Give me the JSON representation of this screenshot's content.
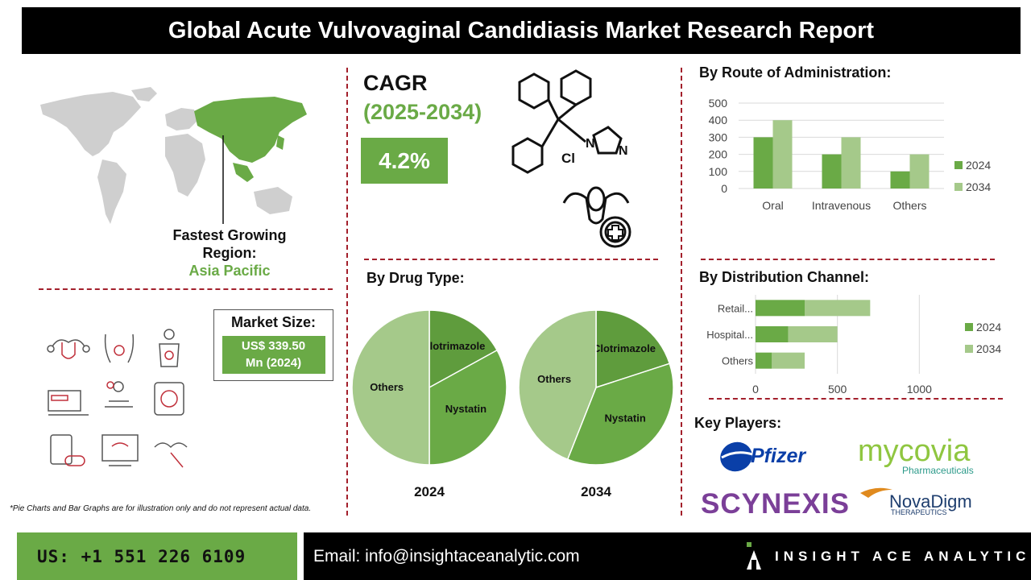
{
  "title": "Global Acute Vulvovaginal Candidiasis Market Research Report",
  "region": {
    "label": "Fastest Growing Region:",
    "value": "Asia Pacific"
  },
  "market_size": {
    "label": "Market Size:",
    "value_line1": "US$ 339.50",
    "value_line2": "Mn (2024)"
  },
  "cagr": {
    "label": "CAGR",
    "period": "(2025-2034)",
    "value": "4.2%"
  },
  "molecule": {
    "cl_label": "Cl",
    "n1_label": "N",
    "n2_label": "N"
  },
  "note": "*Pie Charts and Bar Graphs are for illustration only and do not represent actual data.",
  "sections": {
    "route": "By Route of Administration:",
    "drug": "By Drug Type:",
    "distribution": "By Distribution Channel:",
    "players": "Key Players:"
  },
  "key_players": {
    "pfizer": "Pfizer",
    "mycovia": "mycovia",
    "mycovia_sub": "Pharmaceuticals",
    "scynexis": "SCYNEXIS",
    "novadigm": "NovaDigm",
    "novadigm_sub": "THERAPEUTICS"
  },
  "footer": {
    "phone": "US: +1 551 226 6109",
    "email": "Email: info@insightaceanalytic.com",
    "brand": "INSIGHT ACE ANALYTIC"
  },
  "colors": {
    "dark_green": "#5f9c3d",
    "mid_green": "#6aaa46",
    "light_green": "#a5c98a",
    "accent_red": "#a3202c"
  },
  "chart_data": [
    {
      "type": "bar",
      "title": "By Route of Administration:",
      "categories": [
        "Oral",
        "Intravenous",
        "Others"
      ],
      "series": [
        {
          "name": "2024",
          "values": [
            300,
            200,
            100
          ]
        },
        {
          "name": "2034",
          "values": [
            400,
            300,
            200
          ]
        }
      ],
      "ylim": [
        0,
        500
      ],
      "yticks": [
        0,
        100,
        200,
        300,
        400,
        500
      ],
      "legend": "right",
      "grid": true
    },
    {
      "type": "pie",
      "title": "By Drug Type:",
      "year": "2024",
      "labels": [
        "Clotrimazole",
        "Nystatin",
        "Others"
      ],
      "values": [
        17,
        33,
        50
      ]
    },
    {
      "type": "pie",
      "title": "By Drug Type:",
      "year": "2034",
      "labels": [
        "Clotrimazole",
        "Nystatin",
        "Others"
      ],
      "values": [
        20,
        36,
        44
      ]
    },
    {
      "type": "bar",
      "orientation": "horizontal",
      "stacked": true,
      "title": "By Distribution Channel:",
      "categories": [
        "Retail...",
        "Hospital...",
        "Others"
      ],
      "series": [
        {
          "name": "2024",
          "values": [
            300,
            200,
            100
          ]
        },
        {
          "name": "2034",
          "values": [
            400,
            300,
            200
          ]
        }
      ],
      "xlim": [
        0,
        1200
      ],
      "xticks": [
        0,
        500,
        1000
      ],
      "legend": "right",
      "grid": true
    }
  ]
}
